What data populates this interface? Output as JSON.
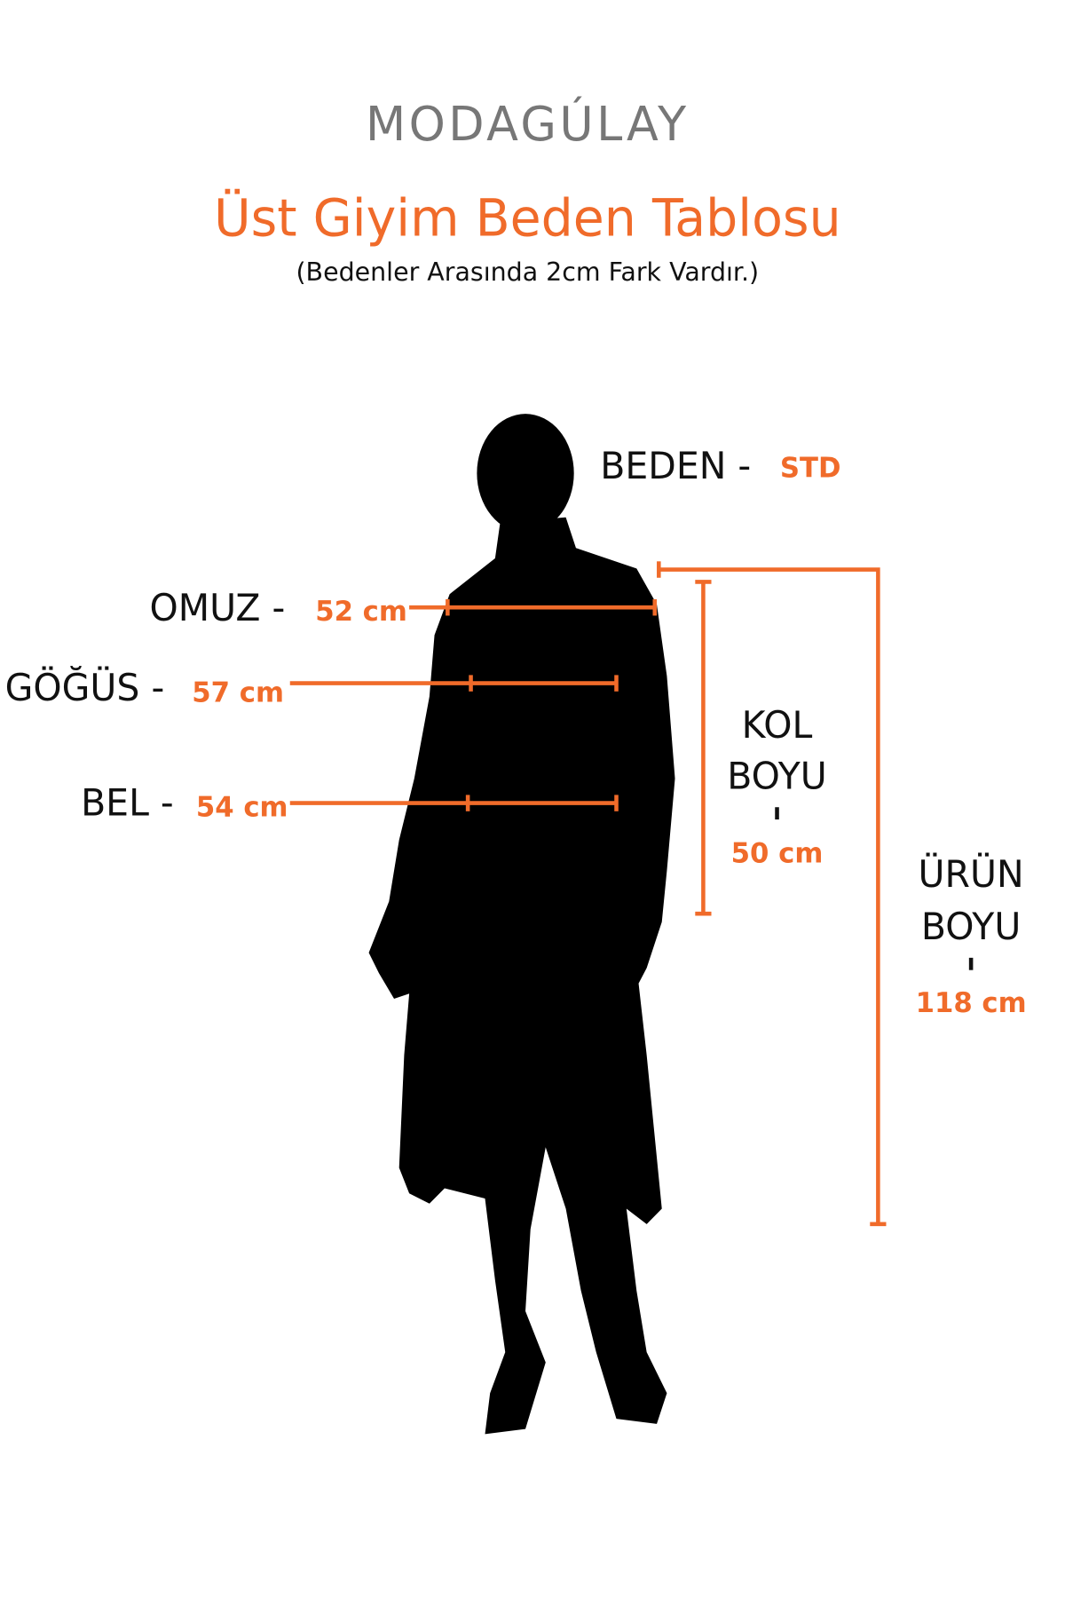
{
  "brand": {
    "logo_text": "MODAGÚLAY",
    "logo_color": "#777777"
  },
  "header": {
    "title": "Üst Giyim Beden Tablosu",
    "subtitle": "(Bedenler Arasında 2cm Fark Vardır.)"
  },
  "accent_color": "#f06b2a",
  "measurements": {
    "beden": {
      "label": "BEDEN -",
      "value": "STD"
    },
    "omuz": {
      "label": "OMUZ -",
      "value": "52 cm"
    },
    "gogus": {
      "label": "GÖĞÜS -",
      "value": "57 cm"
    },
    "bel": {
      "label": "BEL -",
      "value": "54 cm"
    },
    "kol_boyu": {
      "label_line1": "KOL",
      "label_line2": "BOYU",
      "value": "50 cm"
    },
    "urun_boyu": {
      "label_line1": "ÜRÜN",
      "label_line2": "BOYU",
      "value": "118 cm"
    }
  }
}
